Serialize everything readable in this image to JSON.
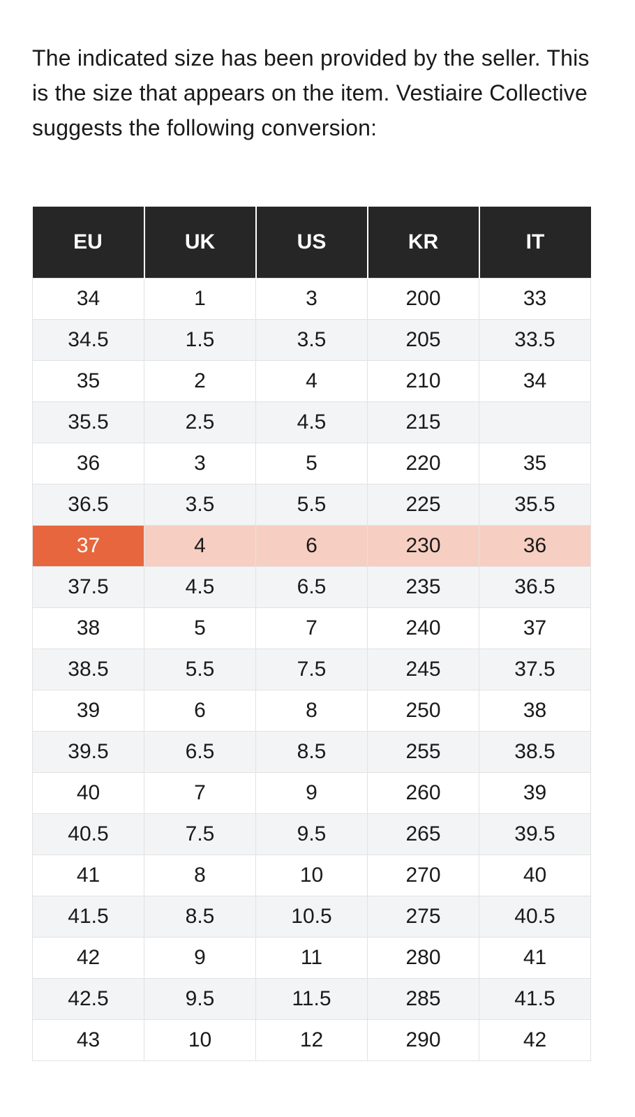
{
  "intro": "The indicated size has been provided by the seller. This is the size that appears on the item. Vestiaire Collective suggests the following conversion:",
  "table": {
    "columns": [
      "EU",
      "UK",
      "US",
      "KR",
      "IT"
    ],
    "rows": [
      [
        "34",
        "1",
        "3",
        "200",
        "33"
      ],
      [
        "34.5",
        "1.5",
        "3.5",
        "205",
        "33.5"
      ],
      [
        "35",
        "2",
        "4",
        "210",
        "34"
      ],
      [
        "35.5",
        "2.5",
        "4.5",
        "215",
        null
      ],
      [
        "36",
        "3",
        "5",
        "220",
        "35"
      ],
      [
        "36.5",
        "3.5",
        "5.5",
        "225",
        "35.5"
      ],
      [
        "37",
        "4",
        "6",
        "230",
        "36"
      ],
      [
        "37.5",
        "4.5",
        "6.5",
        "235",
        "36.5"
      ],
      [
        "38",
        "5",
        "7",
        "240",
        "37"
      ],
      [
        "38.5",
        "5.5",
        "7.5",
        "245",
        "37.5"
      ],
      [
        "39",
        "6",
        "8",
        "250",
        "38"
      ],
      [
        "39.5",
        "6.5",
        "8.5",
        "255",
        "38.5"
      ],
      [
        "40",
        "7",
        "9",
        "260",
        "39"
      ],
      [
        "40.5",
        "7.5",
        "9.5",
        "265",
        "39.5"
      ],
      [
        "41",
        "8",
        "10",
        "270",
        "40"
      ],
      [
        "41.5",
        "8.5",
        "10.5",
        "275",
        "40.5"
      ],
      [
        "42",
        "9",
        "11",
        "280",
        "41"
      ],
      [
        "42.5",
        "9.5",
        "11.5",
        "285",
        "41.5"
      ],
      [
        "43",
        "10",
        "12",
        "290",
        "42"
      ]
    ]
  }
}
